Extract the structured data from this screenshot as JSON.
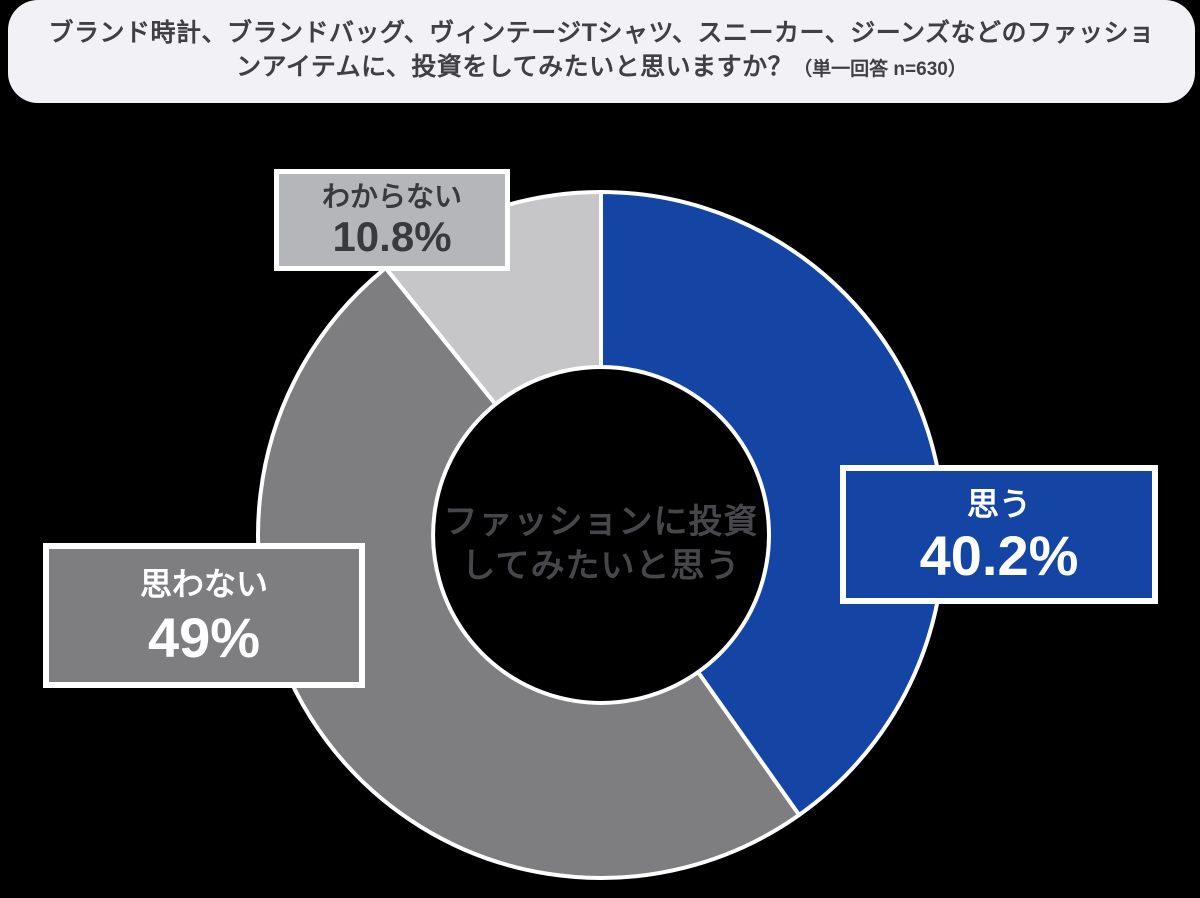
{
  "header": {
    "line1": "ブランド時計、ブランドバッグ、ヴィンテージTシャツ、スニーカー、ジーンズなどのファッショ",
    "line2": "ンアイテムに、投資をしてみたいと思いますか？",
    "note": "（単一回答 n=630）"
  },
  "chart_data": {
    "type": "pie",
    "variant": "donut",
    "title": "ファッションに投資してみたいと思う",
    "center_label_lines": [
      "ファッションに投資",
      "してみたいと思う"
    ],
    "categories": [
      "思う",
      "思わない",
      "わからない"
    ],
    "values": [
      40.2,
      49,
      10.8
    ],
    "unit": "%",
    "colors": [
      "#1545a4",
      "#7e7e81",
      "#c6c6c8"
    ],
    "start_angle_deg": 0,
    "direction": "clockwise",
    "separator_color": "#ffffff",
    "background_color": "#000000",
    "legend_position": "callout-boxes"
  },
  "callouts": [
    {
      "label": "思う",
      "value_text": "40.2%",
      "bg": "#1545a4",
      "text_color": "#ffffff"
    },
    {
      "label": "思わない",
      "value_text": "49%",
      "bg": "#7e7e81",
      "text_color": "#ffffff"
    },
    {
      "label": "わからない",
      "value_text": "10.8%",
      "bg": "#b5b6b9",
      "text_color": "#3a3a3c"
    }
  ]
}
